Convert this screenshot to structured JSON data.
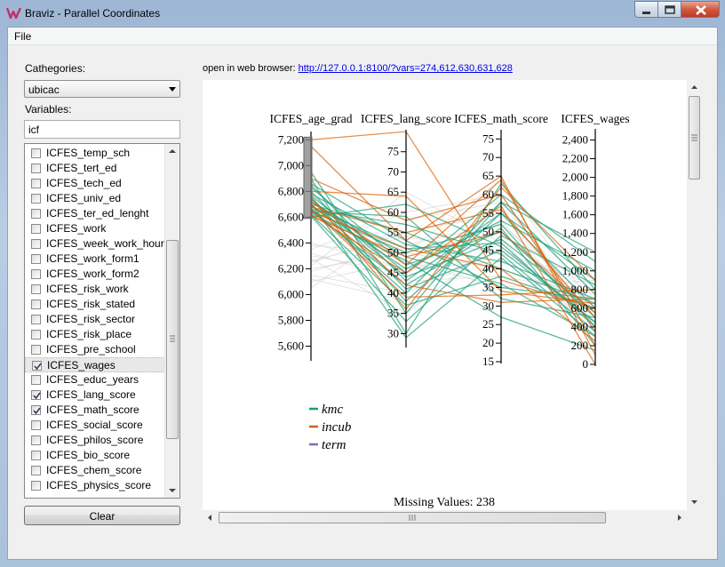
{
  "window": {
    "title": "Braviz - Parallel Coordinates",
    "icon": "braviz-logo-icon",
    "buttons": [
      "minimize-icon",
      "maximize-icon",
      "close-icon"
    ]
  },
  "menu": {
    "file": "File"
  },
  "sidebar": {
    "categories_label": "Cathegories:",
    "categories_selected": "ubicac",
    "variables_label": "Variables:",
    "search_value": "icf",
    "variables": [
      {
        "name": "ICFES_temp_sch",
        "checked": false
      },
      {
        "name": "ICFES_tert_ed",
        "checked": false
      },
      {
        "name": "ICFES_tech_ed",
        "checked": false
      },
      {
        "name": "ICFES_univ_ed",
        "checked": false
      },
      {
        "name": "ICFES_ter_ed_lenght",
        "checked": false
      },
      {
        "name": "ICFES_work",
        "checked": false
      },
      {
        "name": "ICFES_week_work_hour",
        "checked": false
      },
      {
        "name": "ICFES_work_form1",
        "checked": false
      },
      {
        "name": "ICFES_work_form2",
        "checked": false
      },
      {
        "name": "ICFES_risk_work",
        "checked": false
      },
      {
        "name": "ICFES_risk_stated",
        "checked": false
      },
      {
        "name": "ICFES_risk_sector",
        "checked": false
      },
      {
        "name": "ICFES_risk_place",
        "checked": false
      },
      {
        "name": "ICFES_pre_school",
        "checked": false
      },
      {
        "name": "ICFES_wages",
        "checked": true,
        "selected": true
      },
      {
        "name": "ICFES_educ_years",
        "checked": false
      },
      {
        "name": "ICFES_lang_score",
        "checked": true
      },
      {
        "name": "ICFES_math_score",
        "checked": true
      },
      {
        "name": "ICFES_social_score",
        "checked": false
      },
      {
        "name": "ICFES_philos_score",
        "checked": false
      },
      {
        "name": "ICFES_bio_score",
        "checked": false
      },
      {
        "name": "ICFES_chem_score",
        "checked": false
      },
      {
        "name": "ICFES_physics_score",
        "checked": false
      }
    ],
    "clear_label": "Clear"
  },
  "browser": {
    "label": "open in web browser:",
    "url": "http://127.0.0.1:8100/?vars=274,612,630,631,628"
  },
  "chart_data": {
    "type": "parallel-coordinates",
    "axes": [
      {
        "name": "ICFES_age_grad",
        "range": [
          5500,
          7250
        ],
        "ticks": [
          "5,600",
          "5,800",
          "6,000",
          "6,200",
          "6,400",
          "6,600",
          "6,800",
          "7,000",
          "7,200"
        ],
        "brush": [
          6590,
          7220
        ]
      },
      {
        "name": "ICFES_lang_score",
        "range": [
          27,
          80
        ],
        "ticks": [
          "30",
          "35",
          "40",
          "45",
          "50",
          "55",
          "60",
          "65",
          "70",
          "75"
        ]
      },
      {
        "name": "ICFES_math_score",
        "range": [
          15,
          77
        ],
        "ticks": [
          "15",
          "20",
          "25",
          "30",
          "35",
          "40",
          "45",
          "50",
          "55",
          "60",
          "65",
          "70",
          "75"
        ]
      },
      {
        "name": "ICFES_wages",
        "range": [
          0,
          2500
        ],
        "ticks": [
          "0",
          "200",
          "400",
          "600",
          "800",
          "1,000",
          "1,200",
          "1,400",
          "1,600",
          "1,800",
          "2,000",
          "2,200",
          "2,400"
        ]
      }
    ],
    "legend": [
      {
        "name": "kmc",
        "color": "#1b9e77"
      },
      {
        "name": "incub",
        "color": "#d95f02"
      },
      {
        "name": "term",
        "color": "#7570b3"
      }
    ],
    "lines": [
      {
        "g": 0,
        "v": [
          6950,
          35,
          58,
          1200
        ]
      },
      {
        "g": 0,
        "v": [
          6900,
          30,
          63,
          800
        ]
      },
      {
        "g": 0,
        "v": [
          6850,
          43,
          55,
          600
        ]
      },
      {
        "g": 0,
        "v": [
          6830,
          47,
          50,
          500
        ]
      },
      {
        "g": 0,
        "v": [
          6800,
          41,
          45,
          450
        ]
      },
      {
        "g": 0,
        "v": [
          6780,
          52,
          42,
          700
        ]
      },
      {
        "g": 0,
        "v": [
          6760,
          38,
          55,
          900
        ]
      },
      {
        "g": 0,
        "v": [
          6740,
          44,
          48,
          550
        ]
      },
      {
        "g": 0,
        "v": [
          6720,
          49,
          36,
          300
        ]
      },
      {
        "g": 0,
        "v": [
          6700,
          55,
          40,
          650
        ]
      },
      {
        "g": 0,
        "v": [
          6690,
          46,
          53,
          1000
        ]
      },
      {
        "g": 0,
        "v": [
          6680,
          51,
          47,
          400
        ]
      },
      {
        "g": 0,
        "v": [
          6670,
          40,
          58,
          750
        ]
      },
      {
        "g": 0,
        "v": [
          6660,
          57,
          44,
          350
        ]
      },
      {
        "g": 0,
        "v": [
          6650,
          42,
          51,
          200
        ]
      },
      {
        "g": 0,
        "v": [
          6640,
          59,
          32,
          500
        ]
      },
      {
        "g": 0,
        "v": [
          6630,
          48,
          27,
          150
        ]
      },
      {
        "g": 0,
        "v": [
          6620,
          37,
          38,
          600
        ]
      },
      {
        "g": 0,
        "v": [
          6610,
          33,
          49,
          850
        ]
      },
      {
        "g": 0,
        "v": [
          6600,
          62,
          46,
          450
        ]
      },
      {
        "g": 0,
        "v": [
          6770,
          45,
          60,
          1100
        ]
      },
      {
        "g": 0,
        "v": [
          6710,
          29,
          43,
          300
        ]
      },
      {
        "g": 0,
        "v": [
          6860,
          53,
          35,
          700
        ]
      },
      {
        "g": 0,
        "v": [
          6650,
          50,
          52,
          400
        ]
      },
      {
        "g": 1,
        "v": [
          7200,
          80,
          37,
          600
        ]
      },
      {
        "g": 1,
        "v": [
          7150,
          53,
          65,
          100
        ]
      },
      {
        "g": 1,
        "v": [
          6900,
          58,
          60,
          350
        ]
      },
      {
        "g": 1,
        "v": [
          6800,
          64,
          34,
          650
        ]
      },
      {
        "g": 1,
        "v": [
          6750,
          36,
          62,
          900
        ]
      },
      {
        "g": 1,
        "v": [
          6720,
          47,
          64,
          200
        ]
      },
      {
        "g": 1,
        "v": [
          6700,
          42,
          31,
          700
        ]
      },
      {
        "g": 1,
        "v": [
          6680,
          55,
          56,
          500
        ]
      },
      {
        "g": 1,
        "v": [
          6660,
          39,
          33,
          800
        ]
      },
      {
        "g": 1,
        "v": [
          6640,
          51,
          40,
          250
        ]
      },
      {
        "g": 1,
        "v": [
          6620,
          45,
          57,
          0
        ]
      },
      {
        "g": 1,
        "v": [
          6610,
          49,
          50,
          550
        ]
      }
    ],
    "background_lines": [
      {
        "v": [
          6300,
          45,
          50,
          600
        ]
      },
      {
        "v": [
          6200,
          50,
          40,
          700
        ]
      },
      {
        "v": [
          6250,
          55,
          55,
          500
        ]
      },
      {
        "v": [
          6150,
          40,
          45,
          800
        ]
      },
      {
        "v": [
          6350,
          60,
          60,
          400
        ]
      },
      {
        "v": [
          6100,
          48,
          35,
          900
        ]
      },
      {
        "v": [
          6280,
          35,
          48,
          300
        ]
      },
      {
        "v": [
          6180,
          52,
          52,
          650
        ]
      },
      {
        "v": [
          6400,
          46,
          42,
          1000
        ]
      },
      {
        "v": [
          6050,
          58,
          58,
          550
        ]
      },
      {
        "v": [
          6320,
          43,
          38,
          750
        ]
      },
      {
        "v": [
          6220,
          65,
          47,
          350
        ]
      },
      {
        "v": [
          6120,
          38,
          53,
          450
        ]
      },
      {
        "v": [
          6260,
          54,
          44,
          850
        ]
      },
      {
        "v": [
          6380,
          50,
          64,
          600
        ]
      }
    ],
    "missing_values_label": "Missing Values: 238"
  }
}
